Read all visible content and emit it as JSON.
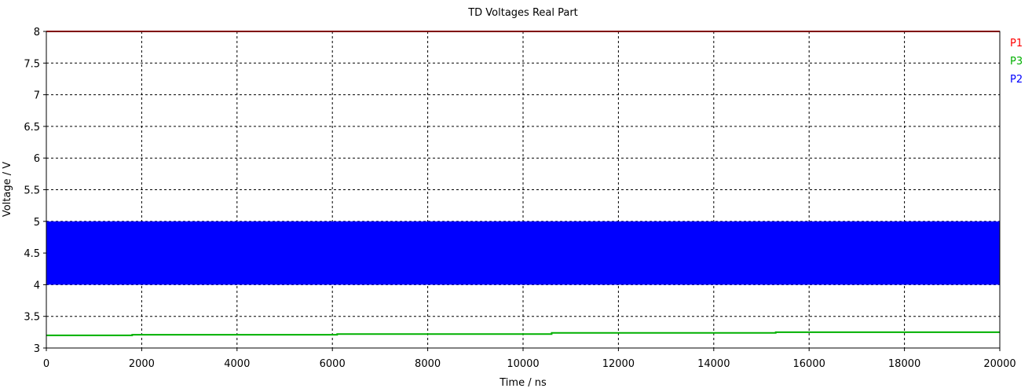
{
  "chart_data": {
    "type": "line",
    "title": "TD Voltages Real Part",
    "xlabel": "Time / ns",
    "ylabel": "Voltage / V",
    "xlim": [
      0,
      20000
    ],
    "ylim": [
      3,
      8
    ],
    "x_ticks": [
      "0",
      "2000",
      "4000",
      "6000",
      "8000",
      "10000",
      "12000",
      "14000",
      "16000",
      "18000",
      "20000"
    ],
    "y_ticks": [
      "3",
      "3.5",
      "4",
      "4.5",
      "5",
      "5.5",
      "6",
      "6.5",
      "7",
      "7.5",
      "8"
    ],
    "grid": true,
    "legend_position": "right",
    "series": [
      {
        "name": "P1",
        "color": "#ff0000",
        "render": "line",
        "x": [
          0,
          20000
        ],
        "y": [
          8,
          8
        ]
      },
      {
        "name": "P3",
        "color": "#00b000",
        "render": "step",
        "x": [
          0,
          1800,
          1800,
          6100,
          6100,
          10600,
          10600,
          15300,
          15300,
          20000
        ],
        "y": [
          3.2,
          3.2,
          3.21,
          3.21,
          3.22,
          3.22,
          3.24,
          3.24,
          3.25,
          3.25
        ]
      },
      {
        "name": "P2",
        "color": "#0000ff",
        "render": "band",
        "x": [
          0,
          20000
        ],
        "y_min": 4,
        "y_max": 5
      }
    ]
  }
}
